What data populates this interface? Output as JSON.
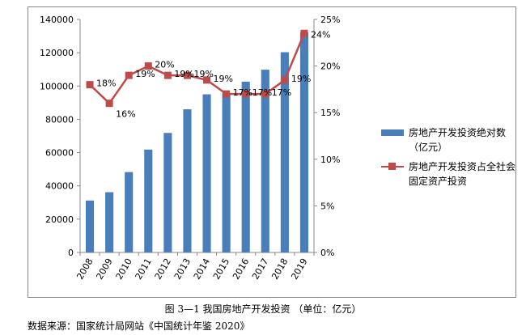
{
  "chart_data": {
    "type": "bar",
    "categories": [
      "2008",
      "2009",
      "2010",
      "2011",
      "2012",
      "2013",
      "2014",
      "2015",
      "2016",
      "2017",
      "2018",
      "2019"
    ],
    "series": [
      {
        "name": "房地产开发投资绝对数（亿元）",
        "type": "bar",
        "axis": "left",
        "color": "#4a7ebb",
        "values": [
          31200,
          36200,
          48300,
          61800,
          71800,
          86000,
          95000,
          95900,
          102600,
          109800,
          120300,
          132200
        ]
      },
      {
        "name": "房地产开发投资占全社会固定资产投资",
        "type": "line",
        "axis": "right",
        "color": "#be4b48",
        "values": [
          18,
          16,
          19,
          20,
          19,
          19,
          18.5,
          17,
          17,
          17,
          18.5,
          23.5
        ],
        "labels": [
          "18%",
          "16%",
          "19%",
          "20%",
          "19%",
          "19%",
          "19%",
          "17%",
          "17%",
          "17%",
          "19%",
          "24%"
        ]
      }
    ],
    "ylim": [
      0,
      140000
    ],
    "y2lim": [
      0,
      25
    ],
    "yticks": [
      "0",
      "20000",
      "40000",
      "60000",
      "80000",
      "100000",
      "120000",
      "140000"
    ],
    "y2ticks": [
      "0%",
      "5%",
      "10%",
      "15%",
      "20%",
      "25%"
    ],
    "grid": false,
    "legend": "right"
  },
  "legend": {
    "bar_label_line1": "房地产开发投资绝对数",
    "bar_label_line2": "（亿元）",
    "line_label_line1": "房地产开发投资占全社会",
    "line_label_line2": "固定资产投资"
  },
  "caption": "图 3—1    我国房地产开发投资  （单位：亿元）",
  "source": "数据来源：国家统计局网站《中国统计年鉴 2020》"
}
